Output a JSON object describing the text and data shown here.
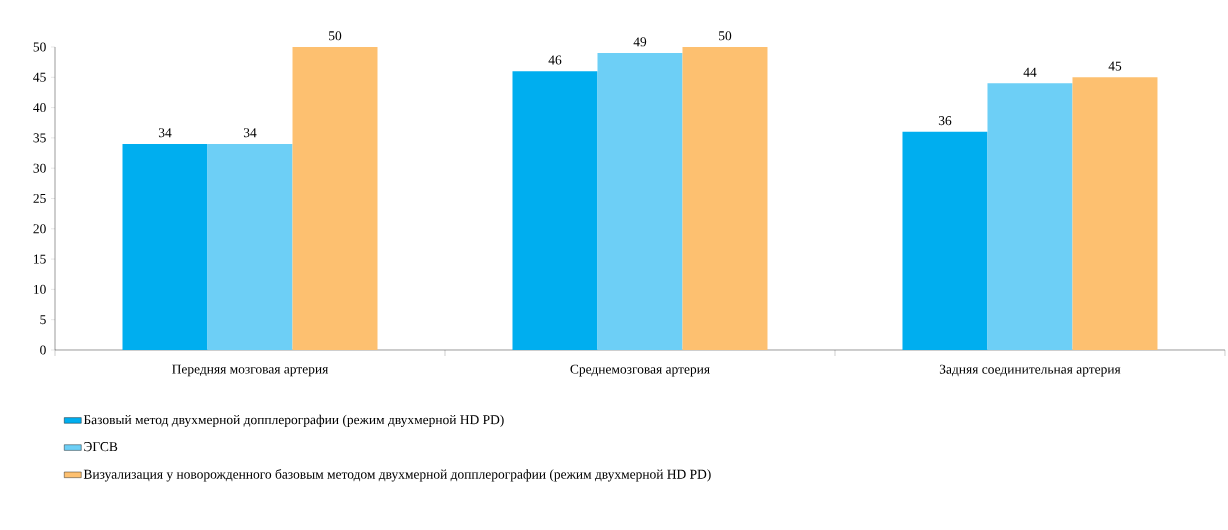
{
  "chart_data": {
    "type": "bar",
    "categories": [
      "Передняя мозговая артерия",
      "Среднемозговая артерия",
      "Задняя соединительная артерия"
    ],
    "series": [
      {
        "name": "Базовый метод двухмерной допплерографии (режим двухмерной HD PD)",
        "color": "#00aeef",
        "values": [
          34,
          46,
          36
        ]
      },
      {
        "name": "ЭГСВ",
        "color": "#6dcff6",
        "values": [
          34,
          49,
          44
        ]
      },
      {
        "name": "Визуализация у новорожденного базовым методом двухмерной допплерографии (режим двухмерной HD PD)",
        "color": "#fdc070",
        "values": [
          50,
          50,
          45
        ]
      }
    ],
    "ylim": [
      0,
      50
    ],
    "yticks": [
      0,
      5,
      10,
      15,
      20,
      25,
      30,
      35,
      40,
      45,
      50
    ],
    "data_labels": true,
    "grid": false,
    "legend": "bottom"
  }
}
